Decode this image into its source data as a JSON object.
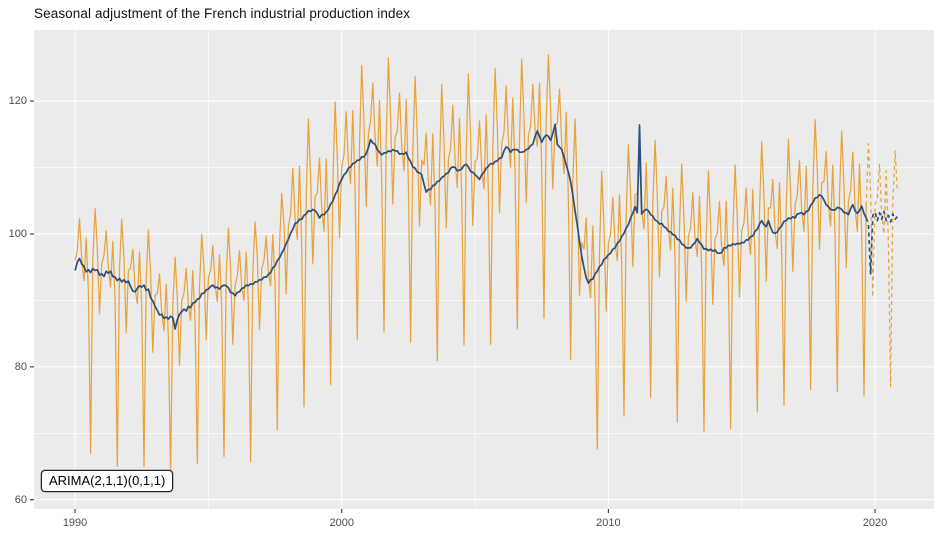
{
  "title": "Seasonal adjustment of the French industrial production index",
  "annotation": {
    "model_label": "ARIMA(2,1,1)(0,1,1)"
  },
  "colors": {
    "raw_series": "#E8A33D",
    "adjusted_series": "#2B4F7E",
    "panel_background": "#EBEBEB",
    "gridline": "#FFFFFF",
    "axis_text": "#4D4D4D",
    "tick_mark": "#333333",
    "title_text": "#111111"
  },
  "chart_data": {
    "type": "line",
    "title": "Seasonal adjustment of the French industrial production index",
    "xlabel": "",
    "ylabel": "",
    "legend": "none",
    "annotation": "ARIMA(2,1,1)(0,1,1)",
    "x_axis": {
      "range": [
        1988.46,
        2022.21
      ],
      "major_ticks": [
        1990,
        2000,
        2010,
        2020
      ],
      "major_tick_labels": [
        "1990",
        "2000",
        "2010",
        "2020"
      ],
      "minor_ticks": [
        1995,
        2005,
        2015
      ]
    },
    "y_axis": {
      "range": [
        58.6,
        130.7
      ],
      "major_ticks": [
        60,
        80,
        100,
        120
      ],
      "major_tick_labels": [
        "60",
        "80",
        "100",
        "120"
      ],
      "minor_ticks": [
        70,
        90,
        110
      ]
    },
    "series": [
      {
        "name": "raw-index-observed",
        "style": "solid",
        "color_key": "raw_series",
        "start_year": 1990.0,
        "step_years": 0.0833333,
        "values": [
          96.0,
          97.5,
          102.3,
          96.3,
          93.0,
          99.4,
          91.3,
          67.0,
          96.2,
          103.8,
          97.9,
          88.0,
          95.5,
          96.8,
          100.5,
          94.8,
          92.0,
          98.9,
          90.0,
          65.0,
          94.8,
          102.2,
          96.3,
          85.2,
          94.5,
          94.9,
          97.7,
          91.8,
          89.5,
          97.3,
          89.2,
          65.0,
          93.3,
          100.6,
          94.1,
          82.2,
          90.8,
          91.0,
          94.0,
          88.2,
          85.4,
          92.4,
          84.3,
          63.5,
          89.2,
          96.5,
          90.4,
          80.2,
          89.9,
          91.1,
          94.8,
          89.3,
          87.0,
          94.5,
          86.7,
          65.5,
          92.0,
          99.9,
          94.8,
          84.1,
          93.4,
          94.6,
          98.3,
          92.5,
          89.8,
          96.9,
          89.0,
          66.5,
          93.9,
          100.9,
          94.7,
          83.4,
          92.2,
          93.7,
          97.5,
          92.1,
          90.0,
          97.3,
          89.2,
          65.7,
          94.1,
          101.8,
          96.5,
          85.6,
          94.8,
          96.0,
          99.7,
          94.2,
          92.2,
          99.9,
          92.4,
          70.5,
          98.1,
          106.1,
          101.4,
          91.0,
          101.2,
          103.0,
          109.9,
          102.4,
          99.2,
          110.2,
          98.2,
          74.0,
          105.2,
          117.3,
          108.6,
          95.5,
          105.7,
          106.1,
          111.4,
          103.9,
          100.4,
          111.3,
          99.7,
          77.3,
          107.1,
          119.9,
          111.5,
          99.4,
          110.1,
          111.9,
          118.4,
          110.7,
          107.6,
          118.6,
          106.7,
          84.1,
          113.3,
          125.4,
          116.8,
          104.1,
          115.1,
          117.1,
          122.7,
          114.5,
          110.2,
          120.1,
          108.1,
          85.2,
          114.2,
          126.5,
          117.4,
          104.5,
          114.5,
          115.5,
          121.2,
          113.1,
          109.5,
          120.3,
          107.4,
          83.7,
          112.3,
          123.7,
          114.5,
          101.2,
          111.1,
          110.4,
          115.2,
          107.5,
          104.4,
          115.1,
          103.6,
          80.9,
          110.2,
          122.5,
          113.7,
          100.9,
          111.2,
          112.9,
          119.4,
          111.0,
          107.0,
          117.4,
          105.8,
          83.3,
          112.5,
          124.1,
          114.4,
          101.3,
          110.9,
          111.4,
          117.0,
          109.7,
          106.8,
          117.9,
          106.2,
          83.4,
          112.7,
          124.9,
          116.2,
          103.2,
          113.6,
          115.3,
          122.3,
          113.9,
          110.0,
          120.5,
          108.9,
          85.7,
          114.3,
          126.3,
          117.4,
          104.7,
          114.7,
          116.3,
          122.5,
          115.5,
          113.2,
          122.7,
          109.8,
          87.3,
          117.1,
          127.0,
          118.9,
          106.8,
          116.4,
          116.6,
          121.8,
          113.6,
          109.1,
          118.3,
          105.0,
          81.1,
          107.7,
          117.3,
          106.0,
          90.8,
          98.7,
          97.7,
          102.4,
          93.5,
          90.4,
          101.2,
          89.8,
          67.6,
          97.1,
          109.4,
          101.0,
          88.4,
          98.7,
          100.1,
          105.5,
          98.4,
          96.0,
          105.9,
          95.4,
          72.6,
          102.7,
          113.4,
          106.2,
          95.1,
          105.9,
          106.1,
          111.0,
          103.4,
          100.8,
          110.7,
          99.3,
          75.4,
          104.5,
          114.1,
          105.7,
          93.5,
          103.4,
          104.1,
          108.7,
          100.9,
          97.6,
          106.9,
          95.6,
          71.7,
          100.9,
          110.5,
          102.1,
          89.9,
          99.7,
          100.9,
          106.2,
          99.2,
          96.6,
          105.7,
          94.2,
          70.2,
          99.6,
          109.5,
          101.5,
          89.4,
          99.4,
          100.1,
          104.9,
          97.7,
          95.2,
          104.9,
          94.1,
          70.7,
          100.3,
          110.4,
          102.4,
          90.5,
          100.5,
          101.7,
          106.9,
          99.6,
          96.9,
          106.7,
          96.2,
          73.2,
          103.3,
          113.9,
          105.4,
          92.9,
          103.9,
          103.9,
          108.2,
          100.4,
          97.8,
          107.7,
          97.2,
          74.2,
          104.0,
          114.2,
          106.3,
          94.4,
          104.4,
          105.8,
          111.1,
          103.5,
          100.4,
          110.2,
          99.5,
          76.6,
          106.7,
          117.2,
          109.5,
          97.7,
          107.7,
          107.9,
          112.4,
          104.4,
          101.2,
          110.4,
          99.6,
          76.3,
          105.9,
          115.5,
          107.2,
          95.0,
          104.9,
          106.6,
          112.3,
          104.0,
          100.4,
          110.5,
          100.1,
          75.6,
          104.3
        ]
      },
      {
        "name": "seasonally-adjusted-observed",
        "style": "solid",
        "color_key": "adjusted_series",
        "start_year": 1990.0,
        "step_years": 0.0833333,
        "values": [
          94.5,
          95.8,
          96.3,
          95.5,
          95.1,
          94.3,
          94.6,
          94.2,
          94.8,
          94.5,
          94.6,
          93.8,
          94.0,
          93.6,
          94.4,
          94.1,
          94.4,
          93.6,
          93.5,
          93.0,
          93.3,
          92.8,
          93.1,
          92.7,
          92.9,
          92.1,
          91.4,
          91.3,
          91.8,
          92.2,
          92.0,
          92.3,
          91.5,
          91.7,
          90.4,
          89.9,
          89.1,
          88.5,
          87.8,
          87.9,
          87.3,
          87.5,
          87.2,
          87.6,
          87.4,
          85.7,
          87.1,
          87.9,
          88.3,
          88.7,
          88.4,
          89.1,
          88.9,
          89.6,
          89.7,
          90.2,
          90.3,
          91.0,
          91.1,
          91.6,
          91.7,
          92.1,
          92.3,
          91.9,
          92.0,
          91.7,
          92.1,
          92.3,
          92.2,
          91.9,
          91.2,
          91.1,
          90.7,
          91.2,
          91.3,
          91.8,
          91.9,
          92.3,
          92.2,
          92.5,
          92.4,
          92.8,
          92.8,
          93.1,
          93.1,
          93.5,
          93.5,
          93.9,
          94.2,
          94.9,
          95.2,
          96.0,
          96.4,
          97.1,
          97.7,
          98.6,
          99.2,
          100.1,
          100.7,
          101.6,
          101.7,
          102.2,
          102.2,
          102.8,
          103.0,
          103.5,
          103.4,
          103.7,
          103.5,
          103.1,
          102.4,
          102.9,
          102.9,
          103.3,
          103.7,
          104.5,
          104.9,
          105.9,
          106.5,
          107.6,
          108.2,
          108.9,
          109.2,
          109.9,
          110.1,
          110.6,
          110.7,
          111.1,
          111.1,
          111.6,
          111.6,
          112.1,
          113.0,
          114.2,
          113.7,
          113.5,
          112.7,
          112.3,
          111.9,
          112.2,
          112.2,
          112.5,
          112.4,
          112.7,
          112.5,
          112.5,
          112.0,
          112.1,
          112.0,
          112.3,
          111.4,
          110.9,
          110.1,
          109.9,
          109.3,
          109.2,
          108.9,
          107.5,
          106.3,
          106.7,
          106.7,
          107.3,
          107.4,
          107.9,
          108.0,
          108.5,
          108.7,
          109.1,
          109.2,
          109.9,
          110.1,
          110.0,
          109.5,
          109.6,
          109.8,
          110.3,
          110.5,
          110.1,
          109.4,
          109.3,
          108.9,
          108.6,
          108.2,
          108.9,
          109.3,
          109.9,
          110.2,
          110.6,
          110.5,
          110.9,
          111.0,
          111.4,
          111.5,
          112.5,
          113.1,
          112.9,
          112.3,
          112.7,
          112.7,
          112.7,
          112.3,
          112.3,
          112.4,
          112.7,
          112.8,
          113.3,
          113.5,
          114.7,
          115.5,
          114.7,
          113.8,
          114.5,
          114.9,
          114.7,
          114.1,
          115.1,
          116.5,
          113.5,
          113.1,
          112.7,
          111.6,
          110.4,
          109.3,
          107.9,
          105.9,
          103.4,
          101.3,
          98.9,
          96.7,
          94.9,
          93.4,
          92.6,
          93.1,
          93.2,
          94.0,
          94.4,
          95.1,
          95.4,
          96.2,
          96.4,
          96.9,
          97.1,
          97.7,
          97.9,
          98.6,
          98.9,
          99.6,
          100.1,
          100.9,
          101.4,
          102.4,
          103.1,
          104.1,
          103.2,
          116.4,
          103.0,
          103.5,
          103.7,
          103.5,
          102.9,
          102.7,
          102.1,
          101.9,
          101.5,
          101.6,
          101.1,
          100.9,
          100.4,
          100.3,
          99.9,
          99.8,
          99.2,
          99.1,
          98.5,
          98.3,
          97.9,
          97.9,
          97.9,
          98.4,
          98.7,
          99.3,
          98.7,
          98.4,
          97.7,
          97.8,
          97.5,
          97.7,
          97.4,
          97.6,
          97.1,
          97.1,
          97.2,
          97.9,
          97.9,
          98.3,
          98.2,
          98.5,
          98.4,
          98.6,
          98.5,
          98.7,
          98.7,
          99.1,
          99.1,
          99.6,
          99.7,
          100.4,
          100.7,
          101.5,
          102.0,
          101.4,
          101.1,
          102.0,
          101.0,
          100.2,
          100.1,
          100.3,
          100.9,
          101.2,
          101.9,
          102.0,
          102.4,
          102.3,
          102.6,
          102.4,
          103.0,
          103.1,
          103.2,
          102.9,
          103.4,
          103.5,
          104.3,
          104.7,
          105.4,
          105.5,
          105.9,
          105.7,
          105.1,
          104.4,
          104.1,
          103.7,
          103.6,
          103.6,
          104.0,
          103.9,
          103.7,
          103.2,
          103.2,
          102.9,
          103.8,
          104.4,
          103.5,
          103.1,
          103.5,
          104.2,
          103.1,
          102.4
        ]
      },
      {
        "name": "raw-index-forecast",
        "style": "dashed",
        "color_key": "raw_series",
        "start_year": 2019.6667,
        "step_years": 0.0833333,
        "values": [
          104.3,
          113.6,
          106.5,
          90.5,
          104.5,
          105.5,
          110.5,
          103.0,
          100.0,
          109.5,
          98.5,
          77.0,
          104.5,
          112.5,
          106.5
        ]
      },
      {
        "name": "seasonally-adjusted-forecast",
        "style": "dashed",
        "color_key": "adjusted_series",
        "start_year": 2019.6667,
        "step_years": 0.0833333,
        "values": [
          102.4,
          101.6,
          94.0,
          102.8,
          103.3,
          102.0,
          103.2,
          102.2,
          103.4,
          102.0,
          102.8,
          101.8,
          103.0,
          102.2,
          102.6
        ]
      }
    ]
  }
}
